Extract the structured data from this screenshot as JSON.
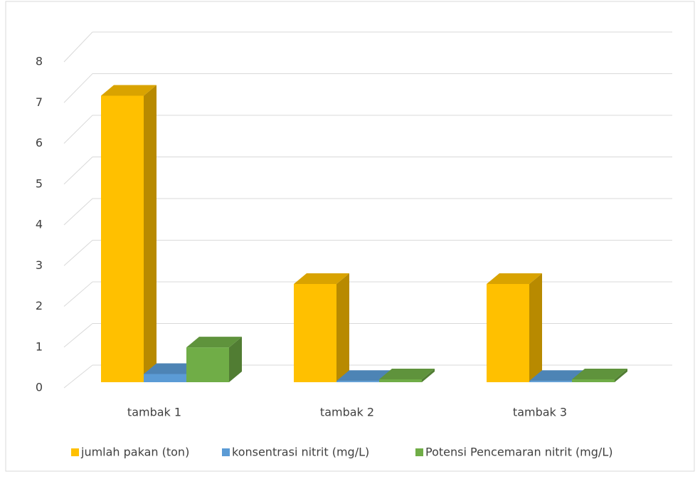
{
  "chart_data": {
    "type": "bar3d",
    "categories": [
      "tambak 1",
      "tambak 2",
      "tambak 3"
    ],
    "series": [
      {
        "name": "jumlah pakan (ton)",
        "color": "#ffc000",
        "values": [
          7.0,
          2.4,
          2.4
        ]
      },
      {
        "name": "konsentrasi nitrit (mg/L)",
        "color": "#5b9bd5",
        "values": [
          0.2,
          0.03,
          0.03
        ]
      },
      {
        "name": "Potensi Pencemaran nitrit (mg/L)",
        "color": "#70ad47",
        "values": [
          0.85,
          0.07,
          0.07
        ]
      }
    ],
    "ylim": [
      0,
      8
    ],
    "yticks": [
      0,
      1,
      2,
      3,
      4,
      5,
      6,
      7,
      8
    ],
    "grid": true,
    "legend": "bottom"
  }
}
